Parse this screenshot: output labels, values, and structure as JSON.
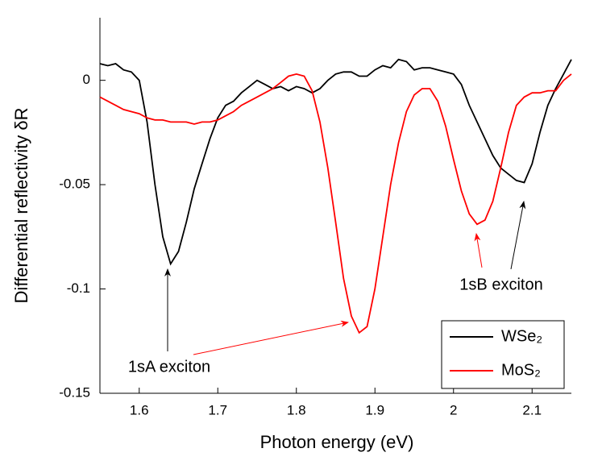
{
  "chart_data": {
    "type": "line",
    "xlabel": "Photon energy (eV)",
    "ylabel": "Differential reflectivity δR",
    "x": [
      1.55,
      1.56,
      1.57,
      1.58,
      1.59,
      1.6,
      1.61,
      1.62,
      1.63,
      1.64,
      1.65,
      1.66,
      1.67,
      1.68,
      1.69,
      1.7,
      1.71,
      1.72,
      1.73,
      1.74,
      1.75,
      1.76,
      1.77,
      1.78,
      1.79,
      1.8,
      1.81,
      1.82,
      1.83,
      1.84,
      1.85,
      1.86,
      1.87,
      1.88,
      1.89,
      1.9,
      1.91,
      1.92,
      1.93,
      1.94,
      1.95,
      1.96,
      1.97,
      1.98,
      1.99,
      2.0,
      2.01,
      2.02,
      2.03,
      2.04,
      2.05,
      2.06,
      2.07,
      2.08,
      2.09,
      2.1,
      2.11,
      2.12,
      2.13,
      2.14,
      2.15
    ],
    "series": [
      {
        "name": "WSe₂",
        "color": "#000000",
        "values": [
          0.008,
          0.007,
          0.008,
          0.005,
          0.004,
          0.0,
          -0.02,
          -0.05,
          -0.075,
          -0.088,
          -0.082,
          -0.068,
          -0.052,
          -0.04,
          -0.028,
          -0.018,
          -0.012,
          -0.01,
          -0.006,
          -0.003,
          0.0,
          -0.002,
          -0.004,
          -0.003,
          -0.005,
          -0.003,
          -0.004,
          -0.006,
          -0.004,
          0.0,
          0.003,
          0.004,
          0.004,
          0.002,
          0.002,
          0.005,
          0.007,
          0.006,
          0.01,
          0.009,
          0.005,
          0.006,
          0.006,
          0.005,
          0.004,
          0.003,
          -0.002,
          -0.012,
          -0.02,
          -0.028,
          -0.036,
          -0.042,
          -0.045,
          -0.048,
          -0.049,
          -0.04,
          -0.025,
          -0.012,
          -0.004,
          0.003,
          0.01
        ]
      },
      {
        "name": "MoS₂",
        "color": "#ff0000",
        "values": [
          -0.008,
          -0.01,
          -0.012,
          -0.014,
          -0.015,
          -0.016,
          -0.018,
          -0.019,
          -0.019,
          -0.02,
          -0.02,
          -0.02,
          -0.021,
          -0.02,
          -0.02,
          -0.019,
          -0.017,
          -0.015,
          -0.012,
          -0.01,
          -0.008,
          -0.006,
          -0.004,
          -0.001,
          0.002,
          0.003,
          0.002,
          -0.005,
          -0.02,
          -0.042,
          -0.068,
          -0.095,
          -0.113,
          -0.121,
          -0.118,
          -0.1,
          -0.075,
          -0.05,
          -0.03,
          -0.015,
          -0.007,
          -0.004,
          -0.004,
          -0.01,
          -0.022,
          -0.038,
          -0.053,
          -0.064,
          -0.069,
          -0.067,
          -0.058,
          -0.042,
          -0.025,
          -0.012,
          -0.008,
          -0.006,
          -0.006,
          -0.005,
          -0.005,
          0.0,
          0.003
        ]
      }
    ],
    "annotations": [
      "1sA exciton",
      "1sB exciton"
    ],
    "xlim": [
      1.55,
      2.15
    ],
    "xticks": [
      1.6,
      1.7,
      1.8,
      1.9,
      2,
      2.1
    ],
    "ylim": [
      -0.15,
      0.03
    ],
    "yticks": [
      0,
      -0.05,
      -0.1,
      -0.15
    ],
    "legend": "lower right"
  }
}
